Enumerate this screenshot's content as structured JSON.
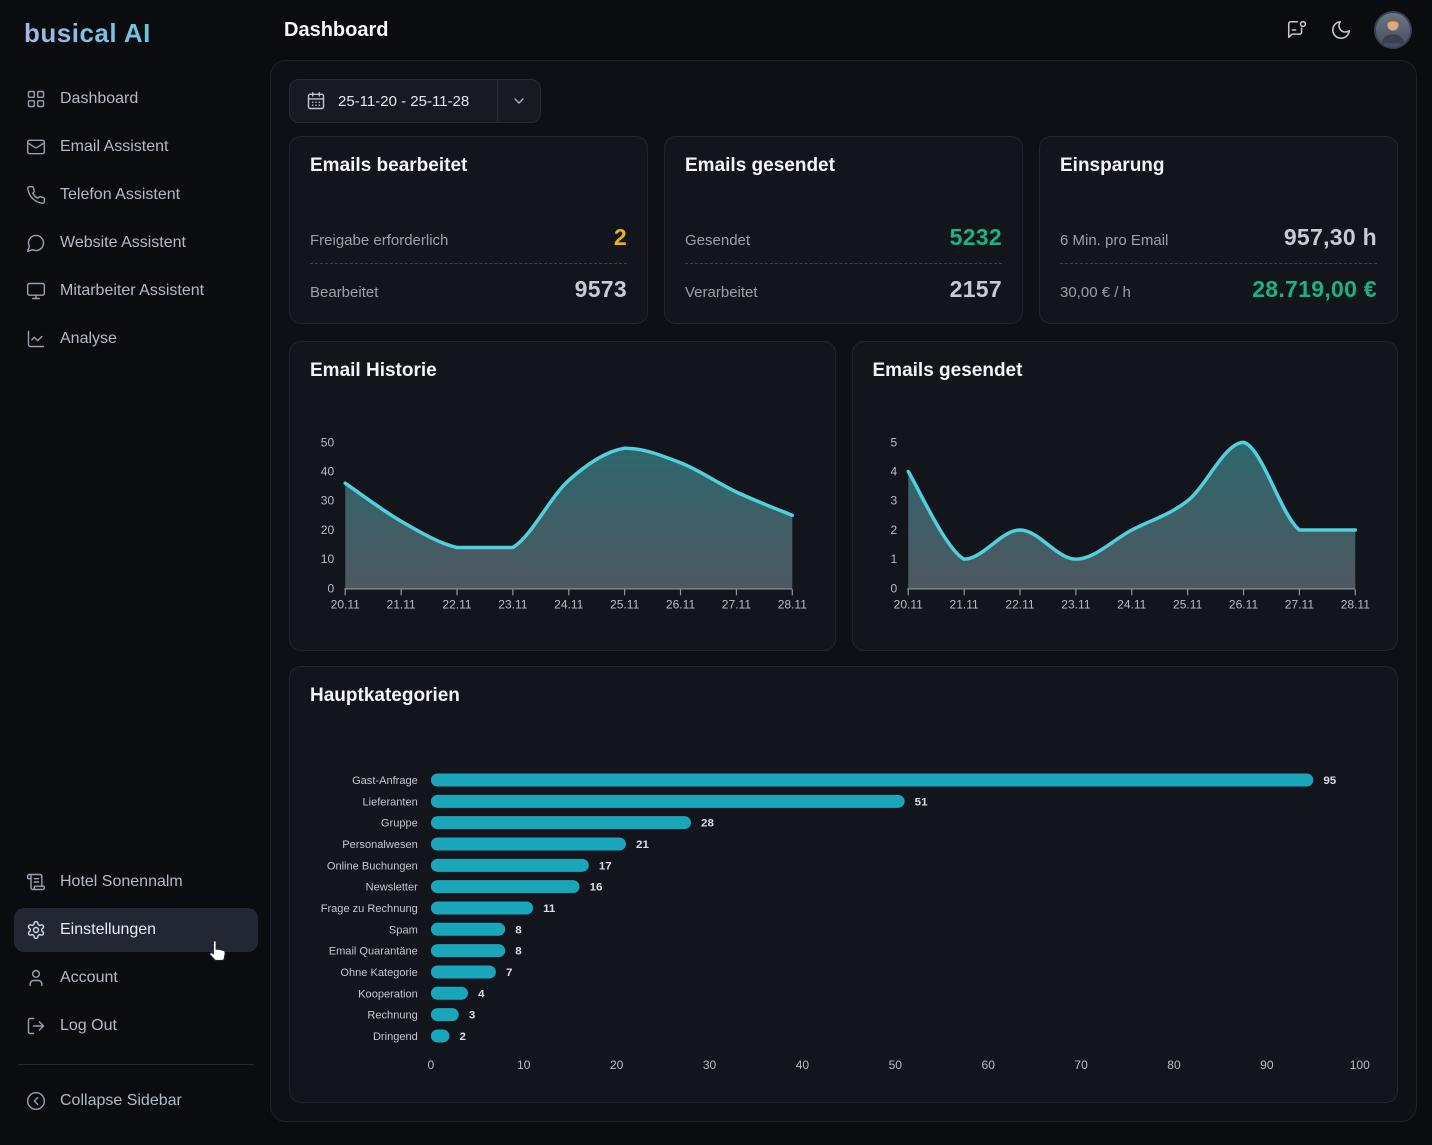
{
  "app": {
    "logo": "busical AI",
    "page_title": "Dashboard"
  },
  "sidebar": {
    "items": [
      {
        "icon": "grid",
        "label": "Dashboard"
      },
      {
        "icon": "mail",
        "label": "Email Assistent"
      },
      {
        "icon": "phone",
        "label": "Telefon Assistent"
      },
      {
        "icon": "chat-bubble",
        "label": "Website Assistent"
      },
      {
        "icon": "monitor",
        "label": "Mitarbeiter Assistent"
      },
      {
        "icon": "chart-line",
        "label": "Analyse"
      }
    ],
    "footer_items": [
      {
        "icon": "scroll",
        "label": "Hotel Sonennalm",
        "active": false
      },
      {
        "icon": "gear",
        "label": "Einstellungen",
        "active": true
      },
      {
        "icon": "user",
        "label": "Account",
        "active": false
      },
      {
        "icon": "log-out",
        "label": "Log Out",
        "active": false
      }
    ],
    "collapse_label": "Collapse Sidebar"
  },
  "header": {
    "icons": [
      "message-square-dot",
      "moon",
      "avatar"
    ]
  },
  "toolbar": {
    "date_range": "25-11-20 - 25-11-28"
  },
  "stat_cards": [
    {
      "title": "Emails bearbeitet",
      "rows": [
        {
          "label": "Freigabe erforderlich",
          "value": "2",
          "color": "#e8b512"
        },
        {
          "label": "Bearbeitet",
          "value": "9573",
          "color": "#c6cbd4"
        }
      ]
    },
    {
      "title": "Emails gesendet",
      "rows": [
        {
          "label": "Gesendet",
          "value": "5232",
          "color": "#17b584"
        },
        {
          "label": "Verarbeitet",
          "value": "2157",
          "color": "#c6cbd4"
        }
      ]
    },
    {
      "title": "Einsparung",
      "rows": [
        {
          "label": "6 Min. pro Email",
          "value": "957,30 h",
          "color": "#c6cbd4"
        },
        {
          "label": "30,00 € / h",
          "value": "28.719,00 €",
          "color": "#17b584"
        }
      ]
    }
  ],
  "chart_data": [
    {
      "type": "area",
      "title": "Email Historie",
      "x": [
        "20.11",
        "21.11",
        "22.11",
        "23.11",
        "24.11",
        "25.11",
        "26.11",
        "27.11",
        "28.11"
      ],
      "values": [
        36,
        23,
        14,
        14,
        37,
        48,
        43,
        33,
        25
      ],
      "ylim": [
        0,
        50
      ],
      "yticks": [
        0,
        10,
        20,
        30,
        40,
        50
      ],
      "line_color": "#4fd0dc",
      "fill_top": "#3e99a0",
      "fill_bottom": "#72808a",
      "grid": false,
      "legend": "none"
    },
    {
      "type": "area",
      "title": "Emails gesendet",
      "x": [
        "20.11",
        "21.11",
        "22.11",
        "23.11",
        "24.11",
        "25.11",
        "26.11",
        "27.11",
        "28.11"
      ],
      "values": [
        4,
        1,
        2,
        1,
        2,
        3,
        5,
        2,
        2
      ],
      "ylim": [
        0,
        5
      ],
      "yticks": [
        0,
        1,
        2,
        3,
        4,
        5
      ],
      "line_color": "#4fd0dc",
      "fill_top": "#3e99a0",
      "fill_bottom": "#72808a",
      "grid": false,
      "legend": "none"
    },
    {
      "type": "bar",
      "title": "Hauptkategorien",
      "orientation": "horizontal",
      "categories": [
        "Gast-Anfrage",
        "Lieferanten",
        "Gruppe",
        "Personalwesen",
        "Online Buchungen",
        "Newsletter",
        "Frage zu Rechnung",
        "Spam",
        "Email Quarantäne",
        "Ohne Kategorie",
        "Kooperation",
        "Rechnung",
        "Dringend"
      ],
      "values": [
        95,
        51,
        28,
        21,
        17,
        16,
        11,
        8,
        8,
        7,
        4,
        3,
        2
      ],
      "xlim": [
        0,
        100
      ],
      "xticks": [
        0,
        10,
        20,
        30,
        40,
        50,
        60,
        70,
        80,
        90,
        100
      ],
      "bar_color": "#19a6ba",
      "grid": false,
      "legend": "none"
    }
  ],
  "colors": {
    "accent_teal": "#19a6ba",
    "line_teal": "#4fd0dc",
    "warning_yellow": "#e8b512",
    "success_green": "#17b584",
    "card_bg": "#13151c",
    "panel_bg": "#0e1016",
    "page_bg": "#0a0c10"
  }
}
